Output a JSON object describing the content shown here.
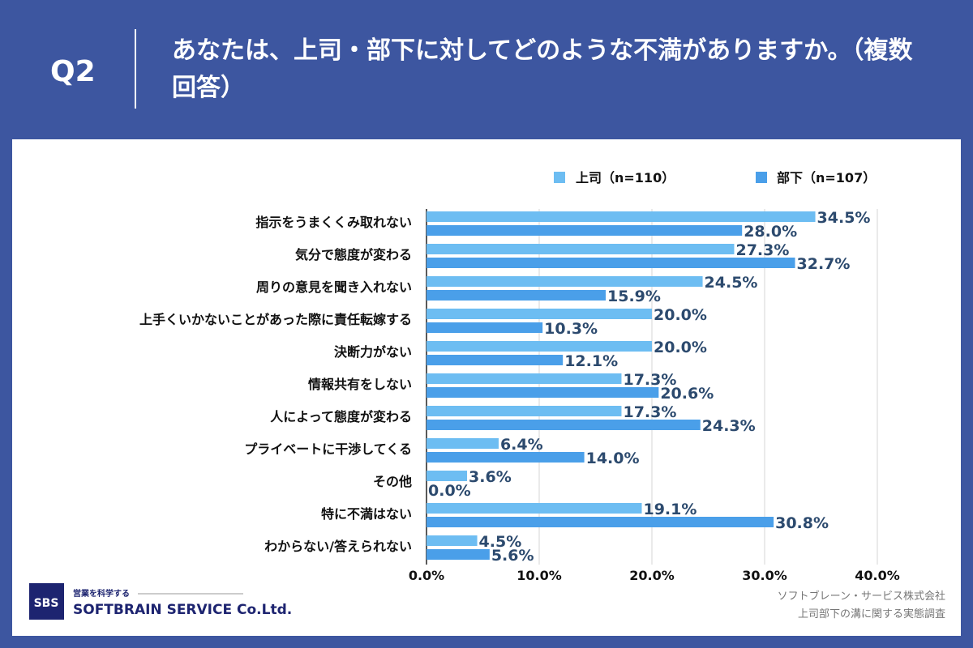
{
  "header": {
    "question": "Q2",
    "title": "あなたは、上司・部下に対してどのような不満がありますか。（複数回答）"
  },
  "chart_data": {
    "type": "bar",
    "orientation": "horizontal",
    "categories": [
      "指示をうまくくみ取れない",
      "気分で態度が変わる",
      "周りの意見を聞き入れない",
      "上手くいかないことがあった際に責任転嫁する",
      "決断力がない",
      "情報共有をしない",
      "人によって態度が変わる",
      "プライベートに干渉してくる",
      "その他",
      "特に不満はない",
      "わからない/答えられない"
    ],
    "series": [
      {
        "name": "上司（n=110）",
        "color": "#6dbdf2",
        "values": [
          34.5,
          27.3,
          24.5,
          20.0,
          20.0,
          17.3,
          17.3,
          6.4,
          3.6,
          19.1,
          4.5
        ]
      },
      {
        "name": "部下（n=107）",
        "color": "#4a9fe9",
        "values": [
          28.0,
          32.7,
          15.9,
          10.3,
          12.1,
          20.6,
          24.3,
          14.0,
          0.0,
          30.8,
          5.6
        ]
      }
    ],
    "xlim": [
      0,
      40
    ],
    "ticks": [
      "0.0%",
      "10.0%",
      "20.0%",
      "30.0%",
      "40.0%"
    ],
    "tick_values": [
      0,
      10,
      20,
      30,
      40
    ],
    "grid": true,
    "legend": "top-right"
  },
  "footer": {
    "logo_text": "SBS",
    "logo_tagline": "営業を科学する",
    "logo_company": "SOFTBRAIN SERVICE Co.Ltd.",
    "source_line1": "ソフトブレーン・サービス株式会社",
    "source_line2": "上司部下の溝に関する実態調査"
  }
}
